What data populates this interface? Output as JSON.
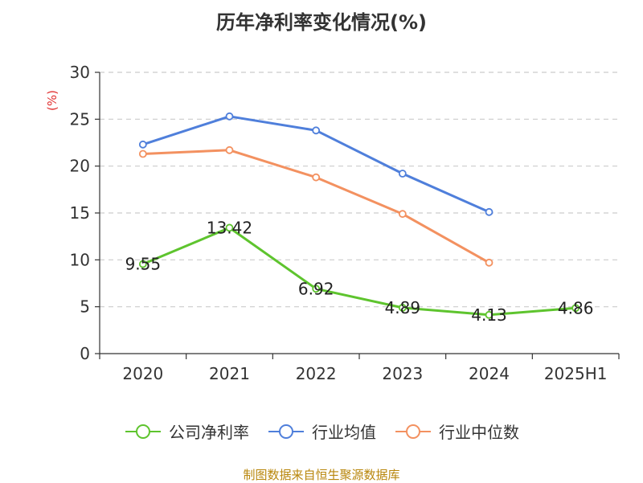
{
  "chart_data": {
    "type": "line",
    "title": "历年净利率变化情况(%)",
    "ylabel": "(%)",
    "categories": [
      "2020",
      "2021",
      "2022",
      "2023",
      "2024",
      "2025H1"
    ],
    "ylim": [
      0,
      30
    ],
    "yticks": [
      0,
      5,
      10,
      15,
      20,
      25,
      30
    ],
    "grid": true,
    "legend_position": "bottom",
    "series": [
      {
        "name": "公司净利率",
        "color": "#5ec42e",
        "values": [
          9.55,
          13.42,
          6.92,
          4.89,
          4.13,
          4.86
        ],
        "labels": [
          "9.55",
          "13.42",
          "6.92",
          "4.89",
          "4.13",
          "4.86"
        ]
      },
      {
        "name": "行业均值",
        "color": "#4f7fdb",
        "values": [
          22.3,
          25.3,
          23.8,
          19.2,
          15.1,
          null
        ]
      },
      {
        "name": "行业中位数",
        "color": "#f39160",
        "values": [
          21.3,
          21.7,
          18.8,
          14.9,
          9.7,
          null
        ]
      }
    ]
  },
  "footer": {
    "source": "制图数据来自恒生聚源数据库"
  }
}
